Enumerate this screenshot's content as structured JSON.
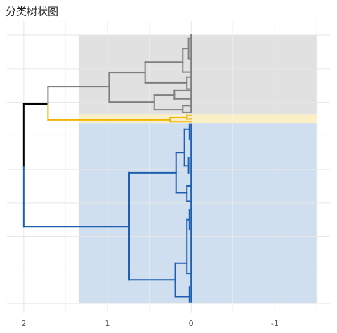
{
  "chart_data": {
    "type": "dendrogram",
    "title": "分类树状图",
    "xlim": [
      2.2,
      -1.66
    ],
    "xticks": [
      2,
      1,
      0,
      -1
    ],
    "xminor": [
      1.5,
      0.5,
      -0.5,
      -1.5
    ],
    "ylim": [
      -0.27,
      8.42
    ],
    "yticks": [
      0,
      1,
      2,
      3,
      4,
      5,
      6,
      7,
      8
    ],
    "grid": true,
    "bands": [
      {
        "color": "#e1e1e1",
        "x": [
          1.345,
          -1.51
        ],
        "y": [
          5.65,
          8.0
        ]
      },
      {
        "color": "#fbefc6",
        "x": [
          1.345,
          -1.51
        ],
        "y": [
          5.38,
          5.65
        ]
      },
      {
        "color": "#cfdff0",
        "x": [
          1.345,
          -1.51
        ],
        "y": [
          0,
          5.38
        ]
      }
    ],
    "branches": [
      {
        "color": "#000000",
        "segments": [
          [
            2,
            5.95,
            2,
            4.08
          ],
          [
            2,
            5.95,
            1.71,
            5.95
          ]
        ]
      },
      {
        "color": "#7f7f7f",
        "segments": [
          [
            1.71,
            5.95,
            1.71,
            6.47
          ],
          [
            1.71,
            6.47,
            0.98,
            6.47
          ],
          [
            0.98,
            6.01,
            0.98,
            6.89
          ],
          [
            0.98,
            6.89,
            0.55,
            6.89
          ],
          [
            0.55,
            6.58,
            0.55,
            7.2
          ],
          [
            0.55,
            7.2,
            0.1,
            7.2
          ],
          [
            0.1,
            6.9,
            0.1,
            7.6
          ],
          [
            0.1,
            7.6,
            0.03,
            7.6
          ],
          [
            0.03,
            7.3,
            0.03,
            7.9
          ],
          [
            0.03,
            7.9,
            0,
            7.9
          ],
          [
            0.03,
            7.3,
            0,
            7.3
          ],
          [
            0.1,
            6.9,
            0,
            6.9
          ],
          [
            0.55,
            6.58,
            0.05,
            6.58
          ],
          [
            0.05,
            6.4,
            0.05,
            6.75
          ],
          [
            0.05,
            6.75,
            0,
            6.75
          ],
          [
            0.05,
            6.4,
            0,
            6.4
          ],
          [
            0.98,
            6.01,
            0.44,
            6.01
          ],
          [
            0.44,
            5.78,
            0.44,
            6.22
          ],
          [
            0.44,
            6.22,
            0.2,
            6.22
          ],
          [
            0.2,
            6.1,
            0.2,
            6.35
          ],
          [
            0.2,
            6.35,
            0,
            6.35
          ],
          [
            0.2,
            6.1,
            0,
            6.1
          ],
          [
            0.44,
            5.78,
            0.1,
            5.78
          ],
          [
            0.1,
            5.7,
            0.1,
            5.9
          ],
          [
            0.1,
            5.9,
            0,
            5.9
          ],
          [
            0.1,
            5.7,
            0,
            5.7
          ],
          [
            0,
            5.7,
            0,
            8.0
          ]
        ]
      },
      {
        "color": "#f0b400",
        "segments": [
          [
            1.71,
            5.47,
            1.71,
            5.95
          ],
          [
            1.71,
            5.47,
            0.25,
            5.47
          ],
          [
            0.25,
            5.42,
            0.25,
            5.55
          ],
          [
            0.25,
            5.55,
            0.05,
            5.55
          ],
          [
            0.05,
            5.5,
            0.05,
            5.62
          ],
          [
            0.05,
            5.62,
            0,
            5.62
          ],
          [
            0.05,
            5.5,
            0,
            5.5
          ],
          [
            0.25,
            5.42,
            0,
            5.42
          ]
        ]
      },
      {
        "color": "#1f5fb0",
        "segments": [
          [
            2,
            4.08,
            2,
            2.3
          ],
          [
            2,
            2.3,
            0.74,
            2.3
          ],
          [
            0.74,
            0.71,
            0.74,
            3.9
          ],
          [
            0.74,
            3.9,
            0.18,
            3.9
          ],
          [
            0.18,
            3.3,
            0.18,
            4.5
          ],
          [
            0.18,
            4.5,
            0.08,
            4.5
          ],
          [
            0.08,
            4.1,
            0.08,
            5.2
          ],
          [
            0.08,
            5.2,
            0.02,
            5.2
          ],
          [
            0.02,
            4.9,
            0.02,
            5.35
          ],
          [
            0.08,
            4.1,
            0.03,
            4.1
          ],
          [
            0.03,
            3.9,
            0.03,
            4.35
          ],
          [
            0.18,
            3.3,
            0.05,
            3.3
          ],
          [
            0.05,
            3.05,
            0.05,
            3.5
          ],
          [
            0.05,
            3.5,
            0,
            3.5
          ],
          [
            0.05,
            3.05,
            0,
            3.05
          ],
          [
            0.74,
            0.71,
            0.19,
            0.71
          ],
          [
            0.19,
            0.2,
            0.19,
            1.2
          ],
          [
            0.19,
            1.2,
            0.05,
            1.2
          ],
          [
            0.05,
            0.9,
            0.05,
            2.5
          ],
          [
            0.05,
            2.5,
            0.02,
            2.5
          ],
          [
            0.02,
            2.2,
            0.02,
            2.8
          ],
          [
            0.05,
            0.9,
            0,
            0.9
          ],
          [
            0.19,
            0.2,
            0.02,
            0.2
          ],
          [
            0.02,
            0.05,
            0.02,
            0.5
          ],
          [
            0,
            0.05,
            0,
            5.35
          ]
        ]
      }
    ]
  }
}
